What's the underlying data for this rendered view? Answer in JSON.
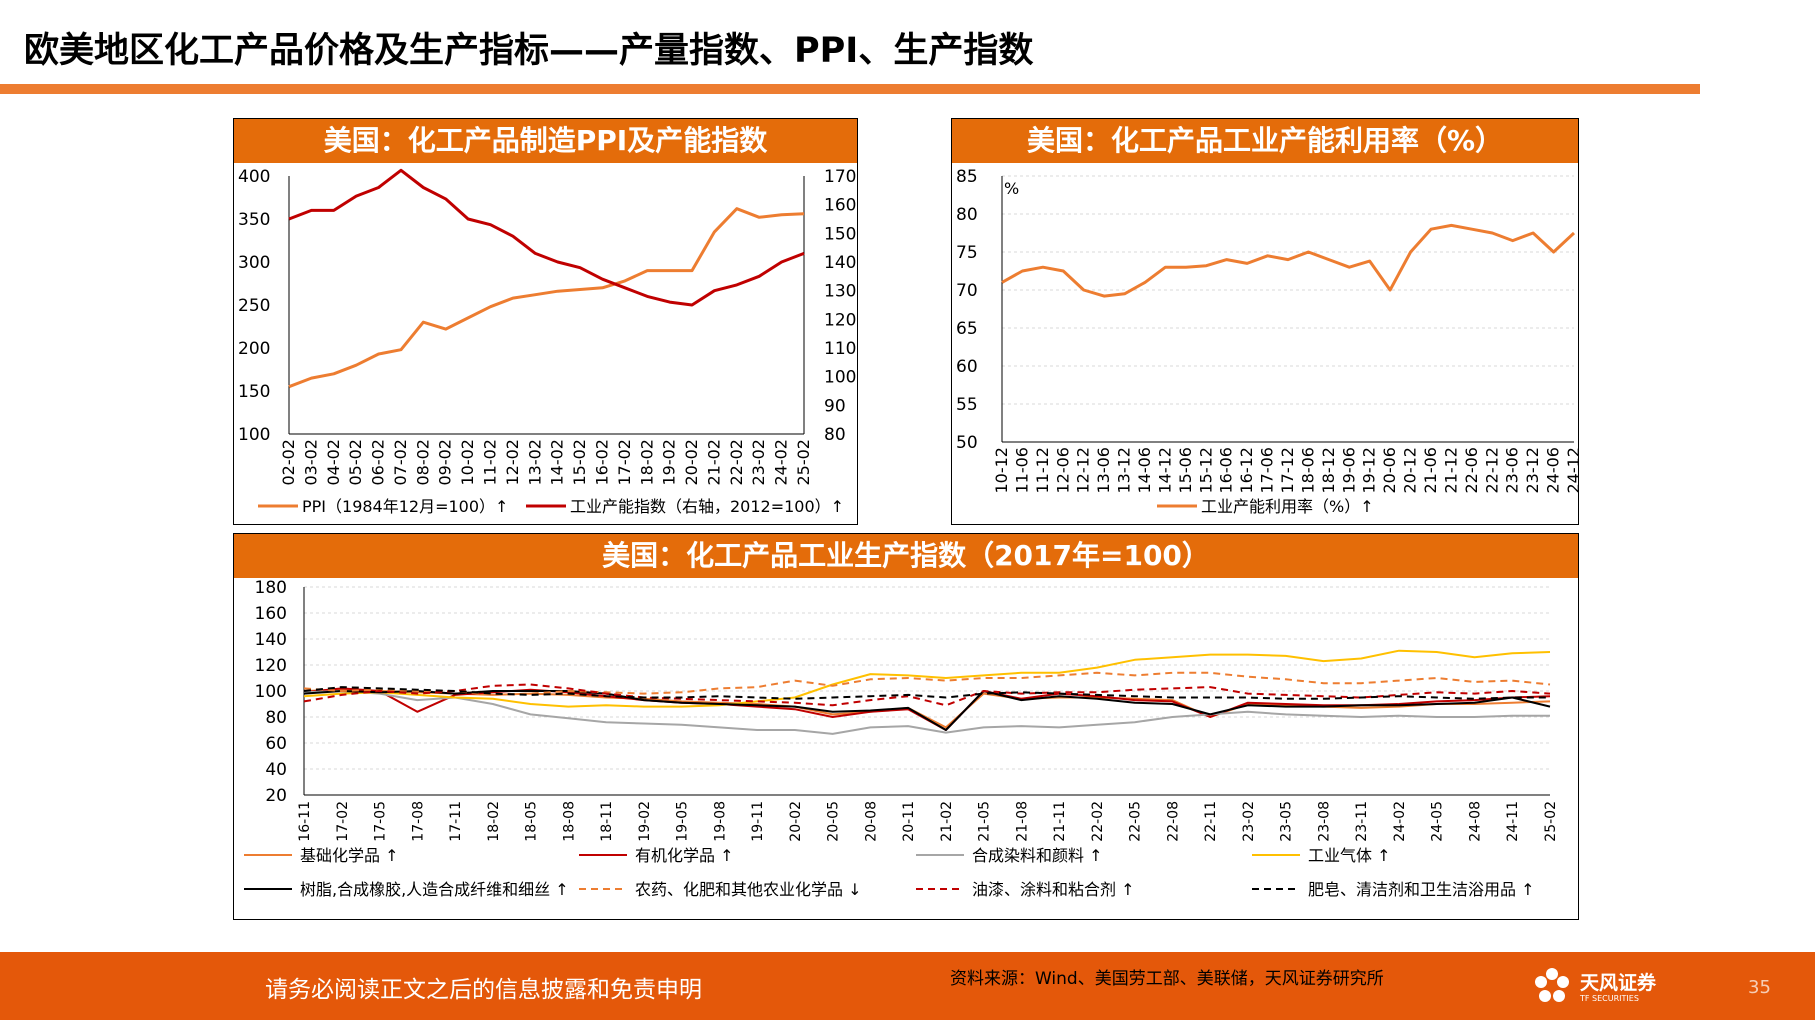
{
  "page": {
    "title": "欧美地区化工产品价格及生产指标——产量指数、PPI、生产指数",
    "disclaimer": "请务必阅读正文之后的信息披露和免责申明",
    "source": "资料来源：Wind、美国劳工部、美联储，天风证券研究所",
    "logo_cn": "天风证券",
    "logo_en": "TF SECURITIES",
    "page_number": "35"
  },
  "colors": {
    "accent": "#E46C0A",
    "orange": "#ED7D31",
    "red": "#C00000",
    "gray": "#A6A6A6",
    "yellow": "#FFC000",
    "black": "#000000"
  },
  "chart_data": [
    {
      "type": "line",
      "title": "美国：化工产品制造PPI及产能指数",
      "categories": [
        "02-02",
        "03-02",
        "04-02",
        "05-02",
        "06-02",
        "07-02",
        "08-02",
        "09-02",
        "10-02",
        "11-02",
        "12-02",
        "13-02",
        "14-02",
        "15-02",
        "16-02",
        "17-02",
        "18-02",
        "19-02",
        "20-02",
        "21-02",
        "22-02",
        "23-02",
        "24-02",
        "25-02"
      ],
      "ylim": [
        100,
        400
      ],
      "y_ticks": [
        "400",
        "350",
        "300",
        "250",
        "200",
        "150",
        "100"
      ],
      "y2lim": [
        80,
        170
      ],
      "y2_ticks": [
        "170",
        "160",
        "150",
        "140",
        "130",
        "120",
        "110",
        "100",
        "90",
        "80"
      ],
      "series": [
        {
          "name": "PPI（1984年12月=100）↑",
          "axis": "left",
          "values": [
            155,
            165,
            170,
            180,
            193,
            198,
            230,
            222,
            235,
            248,
            258,
            262,
            266,
            268,
            270,
            278,
            290,
            290,
            290,
            335,
            362,
            352,
            355,
            356
          ]
        },
        {
          "name": "工业产能指数（右轴，2012=100）↑",
          "axis": "right",
          "values": [
            155,
            158,
            158,
            163,
            166,
            172,
            166,
            162,
            155,
            153,
            149,
            143,
            140,
            138,
            134,
            131,
            128,
            126,
            125,
            130,
            132,
            135,
            140,
            143
          ]
        }
      ]
    },
    {
      "type": "line",
      "title": "美国：化工产品工业产能利用率（%）",
      "unit": "%",
      "categories": [
        "10-12",
        "11-06",
        "11-12",
        "12-06",
        "12-12",
        "13-06",
        "13-12",
        "14-06",
        "14-12",
        "15-06",
        "15-12",
        "16-06",
        "16-12",
        "17-06",
        "17-12",
        "18-06",
        "18-12",
        "19-06",
        "19-12",
        "20-06",
        "20-12",
        "21-06",
        "21-12",
        "22-06",
        "22-12",
        "23-06",
        "23-12",
        "24-06",
        "24-12"
      ],
      "ylim": [
        50,
        85
      ],
      "y_ticks": [
        "85",
        "80",
        "75",
        "70",
        "65",
        "60",
        "55",
        "50"
      ],
      "series": [
        {
          "name": "工业产能利用率（%）↑",
          "values": [
            71,
            72.5,
            73,
            72.5,
            70,
            69.2,
            69.5,
            71,
            73,
            73,
            73.2,
            74,
            73.5,
            74.5,
            74,
            75,
            74,
            73,
            73.8,
            70,
            75,
            78,
            78.5,
            78,
            77.5,
            76.5,
            77.5,
            75,
            77.5
          ]
        }
      ]
    },
    {
      "type": "line",
      "title": "美国：化工产品工业生产指数（2017年=100）",
      "categories": [
        "16-11",
        "17-02",
        "17-05",
        "17-08",
        "17-11",
        "18-02",
        "18-05",
        "18-08",
        "18-11",
        "19-02",
        "19-05",
        "19-08",
        "19-11",
        "20-02",
        "20-05",
        "20-08",
        "20-11",
        "21-02",
        "21-05",
        "21-08",
        "21-11",
        "22-02",
        "22-05",
        "22-08",
        "22-11",
        "23-02",
        "23-05",
        "23-08",
        "23-11",
        "24-02",
        "24-05",
        "24-08",
        "24-11",
        "25-02"
      ],
      "ylim": [
        20,
        180
      ],
      "y_ticks": [
        "180",
        "160",
        "140",
        "120",
        "100",
        "80",
        "60",
        "40",
        "20"
      ],
      "series": [
        {
          "name": "基础化学品 ↑",
          "style": "solid",
          "color": "#ED7D31",
          "values": [
            100,
            101,
            100,
            99,
            98,
            97,
            98,
            97,
            95,
            94,
            92,
            91,
            90,
            88,
            82,
            84,
            87,
            72,
            98,
            94,
            95,
            95,
            94,
            93,
            80,
            90,
            89,
            88,
            87,
            88,
            90,
            90,
            91,
            92
          ]
        },
        {
          "name": "有机化学品 ↑",
          "style": "solid",
          "color": "#C00000",
          "values": [
            99,
            102,
            100,
            84,
            97,
            99,
            101,
            99,
            96,
            93,
            91,
            90,
            88,
            86,
            80,
            84,
            86,
            70,
            100,
            94,
            98,
            96,
            93,
            92,
            80,
            91,
            90,
            89,
            89,
            90,
            92,
            93,
            95,
            96
          ]
        },
        {
          "name": "合成染料和颜料 ↑",
          "style": "solid",
          "color": "#A6A6A6",
          "values": [
            99,
            100,
            98,
            93,
            95,
            90,
            82,
            79,
            76,
            75,
            74,
            72,
            70,
            70,
            67,
            72,
            73,
            68,
            72,
            73,
            72,
            74,
            76,
            80,
            82,
            84,
            82,
            81,
            80,
            81,
            80,
            80,
            81,
            81
          ]
        },
        {
          "name": "工业气体 ↑",
          "style": "solid",
          "color": "#FFC000",
          "values": [
            96,
            98,
            99,
            97,
            95,
            94,
            90,
            88,
            89,
            88,
            88,
            89,
            92,
            95,
            105,
            113,
            112,
            110,
            112,
            114,
            114,
            118,
            124,
            126,
            128,
            128,
            127,
            123,
            125,
            131,
            130,
            126,
            129,
            130
          ]
        },
        {
          "name": "树脂,合成橡胶,人造合成纤维和细丝 ↑",
          "style": "solid",
          "color": "#000000",
          "values": [
            98,
            100,
            99,
            100,
            98,
            100,
            100,
            100,
            98,
            93,
            91,
            90,
            89,
            88,
            84,
            85,
            87,
            70,
            100,
            93,
            96,
            94,
            91,
            90,
            82,
            89,
            88,
            88,
            89,
            89,
            90,
            91,
            95,
            88
          ]
        },
        {
          "name": "农药、化肥和其他农业化学品 ↓",
          "style": "dashed",
          "color": "#ED7D31",
          "values": [
            102,
            100,
            101,
            100,
            100,
            97,
            98,
            100,
            99,
            98,
            99,
            102,
            103,
            108,
            104,
            109,
            110,
            108,
            110,
            110,
            112,
            114,
            112,
            114,
            114,
            111,
            109,
            106,
            106,
            108,
            110,
            107,
            108,
            105
          ]
        },
        {
          "name": "油漆、涂料和粘合剂 ↑",
          "style": "dashed",
          "color": "#C00000",
          "values": [
            92,
            97,
            100,
            98,
            100,
            104,
            105,
            102,
            98,
            95,
            94,
            93,
            92,
            91,
            89,
            93,
            96,
            89,
            100,
            98,
            99,
            99,
            101,
            102,
            103,
            98,
            97,
            96,
            95,
            97,
            99,
            98,
            100,
            98
          ]
        },
        {
          "name": "肥皂、清洁剂和卫生洁浴用品 ↑",
          "style": "dashed",
          "color": "#000000",
          "values": [
            100,
            103,
            102,
            101,
            100,
            98,
            97,
            98,
            96,
            95,
            95,
            96,
            95,
            94,
            95,
            96,
            97,
            95,
            98,
            99,
            98,
            97,
            96,
            95,
            95,
            95,
            94,
            94,
            95,
            96,
            95,
            94,
            95,
            95
          ]
        }
      ]
    }
  ]
}
